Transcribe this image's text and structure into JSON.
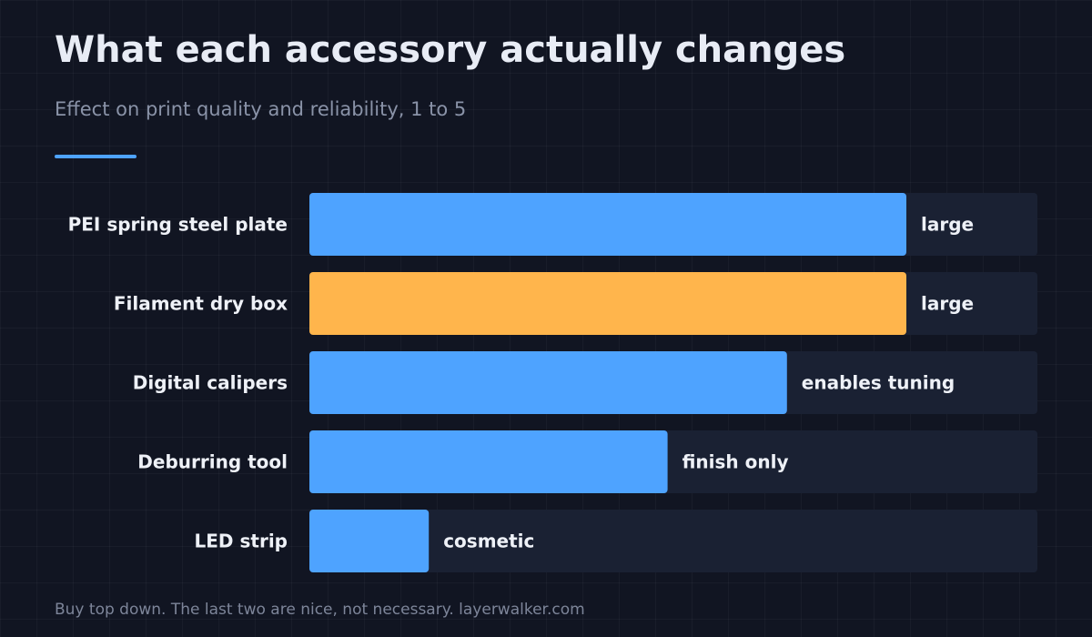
{
  "title": "What each accessory actually changes",
  "subtitle": "Effect on print quality and reliability, 1 to 5",
  "footer": "Buy top down. The last two are nice, not necessary. layerwalker.com",
  "colors": {
    "background": "#111522",
    "track": "#1a2133",
    "bar": "#4ea3ff",
    "highlight": "#ffb54c",
    "accent_rule": "#4ea3ff",
    "category_text": "#eef1f7",
    "value_label_text": "#eef1f7"
  },
  "chart_data": {
    "type": "bar",
    "orientation": "horizontal",
    "xlim": [
      0,
      5
    ],
    "grid": false,
    "categories": [
      "PEI spring steel plate",
      "Filament dry box",
      "Digital calipers",
      "Deburring tool",
      "LED strip"
    ],
    "values": [
      4.1,
      4.1,
      3.28,
      2.46,
      0.82
    ],
    "value_labels": [
      "large",
      "large",
      "enables tuning",
      "finish only",
      "cosmetic"
    ],
    "highlighted_index": 1
  }
}
